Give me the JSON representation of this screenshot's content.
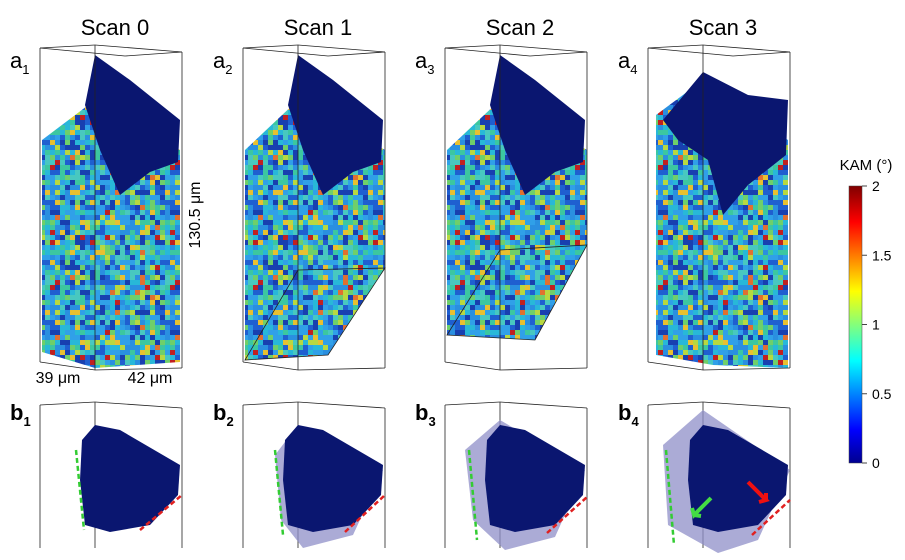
{
  "columns": [
    {
      "title": "Scan 0",
      "top_label": {
        "letter": "a",
        "sub": "1"
      },
      "bottom_label": {
        "letter": "b",
        "sub": "1"
      }
    },
    {
      "title": "Scan 1",
      "top_label": {
        "letter": "a",
        "sub": "2"
      },
      "bottom_label": {
        "letter": "b",
        "sub": "2"
      }
    },
    {
      "title": "Scan 2",
      "top_label": {
        "letter": "a",
        "sub": "3"
      },
      "bottom_label": {
        "letter": "b",
        "sub": "3"
      }
    },
    {
      "title": "Scan 3",
      "top_label": {
        "letter": "a",
        "sub": "4"
      },
      "bottom_label": {
        "letter": "b",
        "sub": "4"
      }
    }
  ],
  "dimensions": {
    "height": "130.5 μm",
    "depth": "39 μm",
    "width": "42 μm"
  },
  "colorbar": {
    "title": "KAM (°)",
    "lim": [
      0,
      2
    ],
    "ticks": [
      0,
      0.5,
      1,
      1.5,
      2
    ]
  }
}
